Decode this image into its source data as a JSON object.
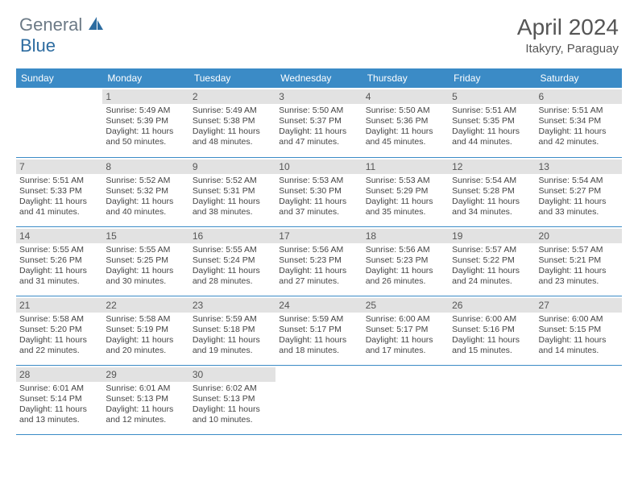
{
  "branding": {
    "text_general": "General",
    "text_blue": "Blue",
    "logo_color": "#2d6ca0",
    "text_muted_color": "#6c7a86"
  },
  "title": {
    "month_year": "April 2024",
    "location": "Itakyry, Paraguay"
  },
  "colors": {
    "header_bg": "#3b8bc6",
    "daynum_bg": "#e2e2e2",
    "row_border": "#3b8bc6"
  },
  "days_of_week": [
    "Sunday",
    "Monday",
    "Tuesday",
    "Wednesday",
    "Thursday",
    "Friday",
    "Saturday"
  ],
  "weeks": [
    [
      {
        "empty": true
      },
      {
        "n": "1",
        "sr": "Sunrise: 5:49 AM",
        "ss": "Sunset: 5:39 PM",
        "dl": "Daylight: 11 hours and 50 minutes."
      },
      {
        "n": "2",
        "sr": "Sunrise: 5:49 AM",
        "ss": "Sunset: 5:38 PM",
        "dl": "Daylight: 11 hours and 48 minutes."
      },
      {
        "n": "3",
        "sr": "Sunrise: 5:50 AM",
        "ss": "Sunset: 5:37 PM",
        "dl": "Daylight: 11 hours and 47 minutes."
      },
      {
        "n": "4",
        "sr": "Sunrise: 5:50 AM",
        "ss": "Sunset: 5:36 PM",
        "dl": "Daylight: 11 hours and 45 minutes."
      },
      {
        "n": "5",
        "sr": "Sunrise: 5:51 AM",
        "ss": "Sunset: 5:35 PM",
        "dl": "Daylight: 11 hours and 44 minutes."
      },
      {
        "n": "6",
        "sr": "Sunrise: 5:51 AM",
        "ss": "Sunset: 5:34 PM",
        "dl": "Daylight: 11 hours and 42 minutes."
      }
    ],
    [
      {
        "n": "7",
        "sr": "Sunrise: 5:51 AM",
        "ss": "Sunset: 5:33 PM",
        "dl": "Daylight: 11 hours and 41 minutes."
      },
      {
        "n": "8",
        "sr": "Sunrise: 5:52 AM",
        "ss": "Sunset: 5:32 PM",
        "dl": "Daylight: 11 hours and 40 minutes."
      },
      {
        "n": "9",
        "sr": "Sunrise: 5:52 AM",
        "ss": "Sunset: 5:31 PM",
        "dl": "Daylight: 11 hours and 38 minutes."
      },
      {
        "n": "10",
        "sr": "Sunrise: 5:53 AM",
        "ss": "Sunset: 5:30 PM",
        "dl": "Daylight: 11 hours and 37 minutes."
      },
      {
        "n": "11",
        "sr": "Sunrise: 5:53 AM",
        "ss": "Sunset: 5:29 PM",
        "dl": "Daylight: 11 hours and 35 minutes."
      },
      {
        "n": "12",
        "sr": "Sunrise: 5:54 AM",
        "ss": "Sunset: 5:28 PM",
        "dl": "Daylight: 11 hours and 34 minutes."
      },
      {
        "n": "13",
        "sr": "Sunrise: 5:54 AM",
        "ss": "Sunset: 5:27 PM",
        "dl": "Daylight: 11 hours and 33 minutes."
      }
    ],
    [
      {
        "n": "14",
        "sr": "Sunrise: 5:55 AM",
        "ss": "Sunset: 5:26 PM",
        "dl": "Daylight: 11 hours and 31 minutes."
      },
      {
        "n": "15",
        "sr": "Sunrise: 5:55 AM",
        "ss": "Sunset: 5:25 PM",
        "dl": "Daylight: 11 hours and 30 minutes."
      },
      {
        "n": "16",
        "sr": "Sunrise: 5:55 AM",
        "ss": "Sunset: 5:24 PM",
        "dl": "Daylight: 11 hours and 28 minutes."
      },
      {
        "n": "17",
        "sr": "Sunrise: 5:56 AM",
        "ss": "Sunset: 5:23 PM",
        "dl": "Daylight: 11 hours and 27 minutes."
      },
      {
        "n": "18",
        "sr": "Sunrise: 5:56 AM",
        "ss": "Sunset: 5:23 PM",
        "dl": "Daylight: 11 hours and 26 minutes."
      },
      {
        "n": "19",
        "sr": "Sunrise: 5:57 AM",
        "ss": "Sunset: 5:22 PM",
        "dl": "Daylight: 11 hours and 24 minutes."
      },
      {
        "n": "20",
        "sr": "Sunrise: 5:57 AM",
        "ss": "Sunset: 5:21 PM",
        "dl": "Daylight: 11 hours and 23 minutes."
      }
    ],
    [
      {
        "n": "21",
        "sr": "Sunrise: 5:58 AM",
        "ss": "Sunset: 5:20 PM",
        "dl": "Daylight: 11 hours and 22 minutes."
      },
      {
        "n": "22",
        "sr": "Sunrise: 5:58 AM",
        "ss": "Sunset: 5:19 PM",
        "dl": "Daylight: 11 hours and 20 minutes."
      },
      {
        "n": "23",
        "sr": "Sunrise: 5:59 AM",
        "ss": "Sunset: 5:18 PM",
        "dl": "Daylight: 11 hours and 19 minutes."
      },
      {
        "n": "24",
        "sr": "Sunrise: 5:59 AM",
        "ss": "Sunset: 5:17 PM",
        "dl": "Daylight: 11 hours and 18 minutes."
      },
      {
        "n": "25",
        "sr": "Sunrise: 6:00 AM",
        "ss": "Sunset: 5:17 PM",
        "dl": "Daylight: 11 hours and 17 minutes."
      },
      {
        "n": "26",
        "sr": "Sunrise: 6:00 AM",
        "ss": "Sunset: 5:16 PM",
        "dl": "Daylight: 11 hours and 15 minutes."
      },
      {
        "n": "27",
        "sr": "Sunrise: 6:00 AM",
        "ss": "Sunset: 5:15 PM",
        "dl": "Daylight: 11 hours and 14 minutes."
      }
    ],
    [
      {
        "n": "28",
        "sr": "Sunrise: 6:01 AM",
        "ss": "Sunset: 5:14 PM",
        "dl": "Daylight: 11 hours and 13 minutes."
      },
      {
        "n": "29",
        "sr": "Sunrise: 6:01 AM",
        "ss": "Sunset: 5:13 PM",
        "dl": "Daylight: 11 hours and 12 minutes."
      },
      {
        "n": "30",
        "sr": "Sunrise: 6:02 AM",
        "ss": "Sunset: 5:13 PM",
        "dl": "Daylight: 11 hours and 10 minutes."
      },
      {
        "empty": true
      },
      {
        "empty": true
      },
      {
        "empty": true
      },
      {
        "empty": true
      }
    ]
  ]
}
